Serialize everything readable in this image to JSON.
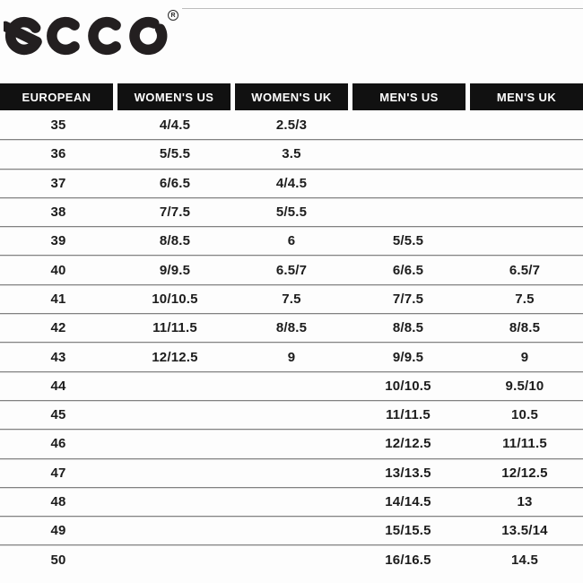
{
  "brand": {
    "name": "ECCO",
    "logo_text": "ecco",
    "registered_mark": "R"
  },
  "size_chart": {
    "columns": [
      "EUROPEAN",
      "WOMEN'S US",
      "WOMEN'S UK",
      "MEN'S US",
      "MEN'S UK"
    ],
    "rows": [
      [
        "35",
        "4/4.5",
        "2.5/3",
        "",
        ""
      ],
      [
        "36",
        "5/5.5",
        "3.5",
        "",
        ""
      ],
      [
        "37",
        "6/6.5",
        "4/4.5",
        "",
        ""
      ],
      [
        "38",
        "7/7.5",
        "5/5.5",
        "",
        ""
      ],
      [
        "39",
        "8/8.5",
        "6",
        "5/5.5",
        ""
      ],
      [
        "40",
        "9/9.5",
        "6.5/7",
        "6/6.5",
        "6.5/7"
      ],
      [
        "41",
        "10/10.5",
        "7.5",
        "7/7.5",
        "7.5"
      ],
      [
        "42",
        "11/11.5",
        "8/8.5",
        "8/8.5",
        "8/8.5"
      ],
      [
        "43",
        "12/12.5",
        "9",
        "9/9.5",
        "9"
      ],
      [
        "44",
        "",
        "",
        "10/10.5",
        "9.5/10"
      ],
      [
        "45",
        "",
        "",
        "11/11.5",
        "10.5"
      ],
      [
        "46",
        "",
        "",
        "12/12.5",
        "11/11.5"
      ],
      [
        "47",
        "",
        "",
        "13/13.5",
        "12/12.5"
      ],
      [
        "48",
        "",
        "",
        "14/14.5",
        "13"
      ],
      [
        "49",
        "",
        "",
        "15/15.5",
        "13.5/14"
      ],
      [
        "50",
        "",
        "",
        "16/16.5",
        "14.5"
      ]
    ]
  },
  "colors": {
    "header_bg": "#111111",
    "header_text": "#ffffff",
    "body_text": "#1c1c1c",
    "separator": "#828282",
    "logo": "#231f20",
    "background": "#fdfdfd"
  }
}
